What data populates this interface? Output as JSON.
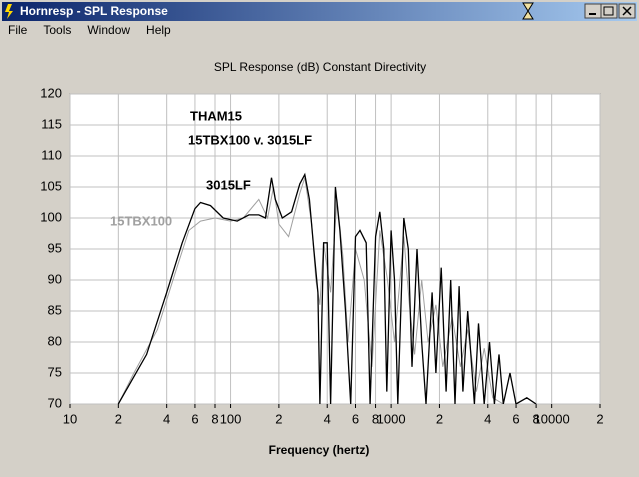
{
  "window": {
    "title": "Hornresp - SPL Response",
    "menu": [
      "File",
      "Tools",
      "Window",
      "Help"
    ]
  },
  "chart_data": {
    "type": "line",
    "title": "SPL Response (dB)   Constant Directivity",
    "annotations": [
      "THAM15",
      "15TBX100 v. 3015LF"
    ],
    "x_label": "Frequency (hertz)",
    "xscale": "log",
    "xlim": [
      10,
      20000
    ],
    "xticks": [
      10,
      {
        "value": 20,
        "label": "2"
      },
      {
        "value": 40,
        "label": "4"
      },
      {
        "value": 60,
        "label": "6"
      },
      {
        "value": 80,
        "label": "8"
      },
      100,
      {
        "value": 200,
        "label": "2"
      },
      {
        "value": 400,
        "label": "4"
      },
      {
        "value": 600,
        "label": "6"
      },
      {
        "value": 800,
        "label": "8"
      },
      1000,
      {
        "value": 2000,
        "label": "2"
      },
      {
        "value": 4000,
        "label": "4"
      },
      {
        "value": 6000,
        "label": "6"
      },
      {
        "value": 8000,
        "label": "8"
      },
      10000,
      {
        "value": 20000,
        "label": "2"
      }
    ],
    "ylim": [
      70,
      120
    ],
    "yticks": [
      70,
      75,
      80,
      85,
      90,
      95,
      100,
      105,
      110,
      115,
      120
    ],
    "grid": true,
    "series": [
      {
        "name": "15TBX100",
        "color": "#a0a0a0",
        "x": [
          20,
          25,
          35,
          45,
          55,
          65,
          80,
          100,
          120,
          150,
          170,
          185,
          200,
          230,
          270,
          290,
          320,
          340,
          360,
          380,
          420,
          460,
          500,
          540,
          600,
          680,
          760,
          850,
          950,
          1050,
          1200,
          1300,
          1400,
          1550,
          1700,
          1900,
          2100,
          2400,
          2700,
          3000,
          3400,
          3800,
          4300,
          5000
        ],
        "values": [
          70,
          75,
          82,
          91,
          98,
          99.5,
          100,
          99.5,
          100,
          103,
          100,
          105,
          99,
          97,
          104,
          106.5,
          99,
          90,
          86,
          96,
          88,
          103,
          94,
          80,
          95,
          90,
          76,
          98,
          90,
          80,
          97,
          86,
          78,
          90,
          80,
          86,
          76,
          84,
          76,
          82,
          72,
          79,
          71,
          70
        ]
      },
      {
        "name": "3015LF",
        "color": "#000000",
        "x": [
          20,
          30,
          40,
          50,
          60,
          65,
          75,
          90,
          110,
          130,
          150,
          165,
          180,
          190,
          210,
          240,
          270,
          290,
          310,
          330,
          350,
          360,
          380,
          400,
          420,
          450,
          480,
          520,
          560,
          600,
          640,
          700,
          740,
          800,
          850,
          900,
          940,
          1000,
          1050,
          1100,
          1200,
          1280,
          1350,
          1450,
          1550,
          1650,
          1800,
          1900,
          2050,
          2200,
          2350,
          2500,
          2650,
          2800,
          3000,
          3300,
          3500,
          3800,
          4100,
          4400,
          4700,
          5000,
          5500,
          6000,
          7000,
          8000
        ],
        "values": [
          70,
          78,
          88,
          96,
          101.5,
          102.5,
          102,
          100,
          99.5,
          100.5,
          100.5,
          100,
          106.5,
          103,
          100,
          101,
          105.5,
          107,
          103,
          95,
          88,
          70,
          96,
          96,
          70,
          105,
          98,
          85,
          70,
          97,
          98,
          96,
          70,
          97,
          101,
          95,
          72,
          98,
          90,
          70,
          100,
          95,
          76,
          95,
          80,
          70,
          88,
          75,
          92,
          72,
          90,
          70,
          89,
          72,
          85,
          70,
          83,
          70,
          80,
          70,
          78,
          70,
          75,
          70,
          71,
          70
        ]
      }
    ]
  }
}
